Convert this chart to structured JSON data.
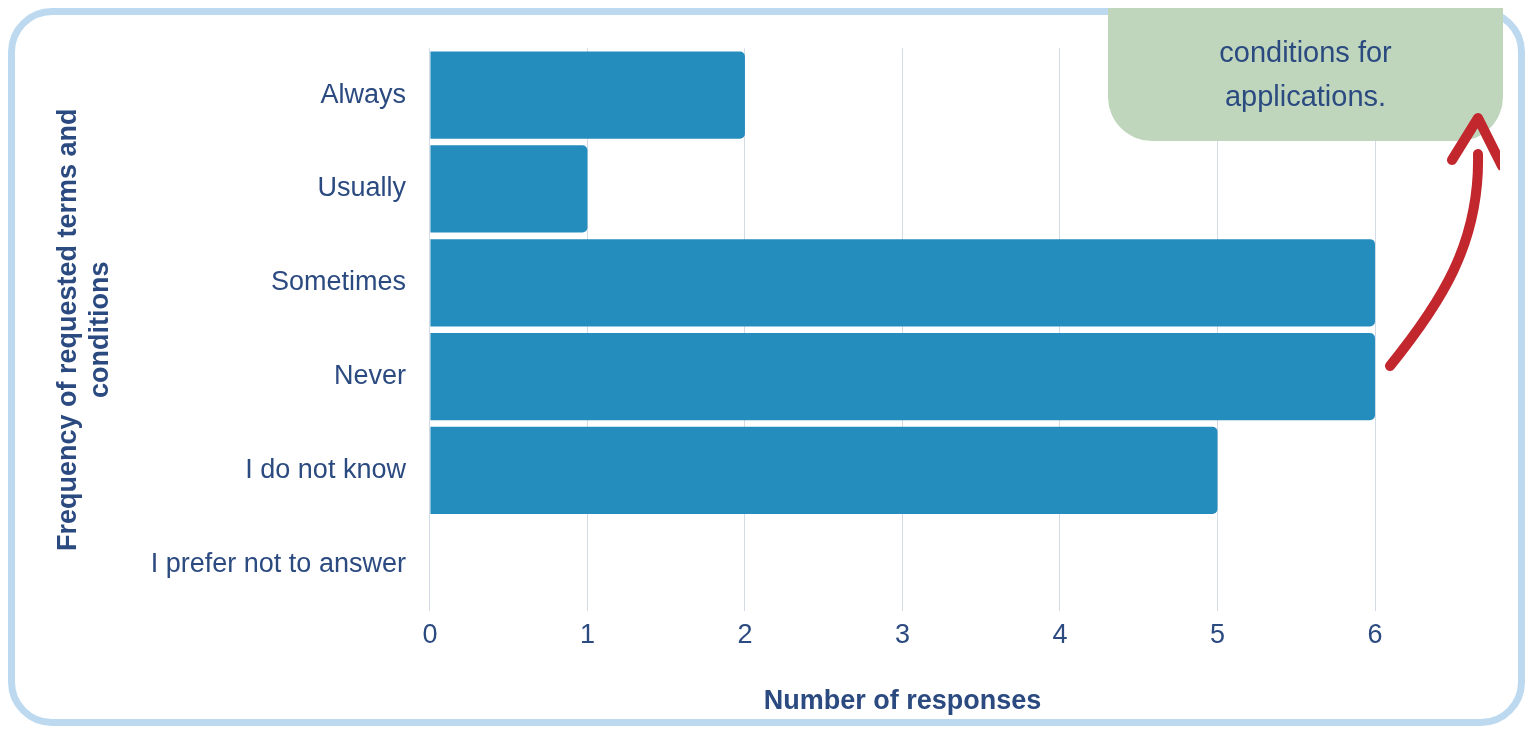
{
  "chart_data": {
    "type": "bar",
    "orientation": "horizontal",
    "categories": [
      "Always",
      "Usually",
      "Sometimes",
      "Never",
      "I do not know",
      "I prefer not to answer"
    ],
    "values": [
      2,
      1,
      6,
      6,
      5,
      0
    ],
    "color": "#258dbd",
    "xlim": [
      0,
      6
    ],
    "xticks": [
      0,
      1,
      2,
      3,
      4,
      5,
      6
    ],
    "grid": "x",
    "xlabel": "Number of responses",
    "ylabel": "Frequency of requested terms and conditions",
    "annotations": [
      "conditions for applications."
    ]
  }
}
